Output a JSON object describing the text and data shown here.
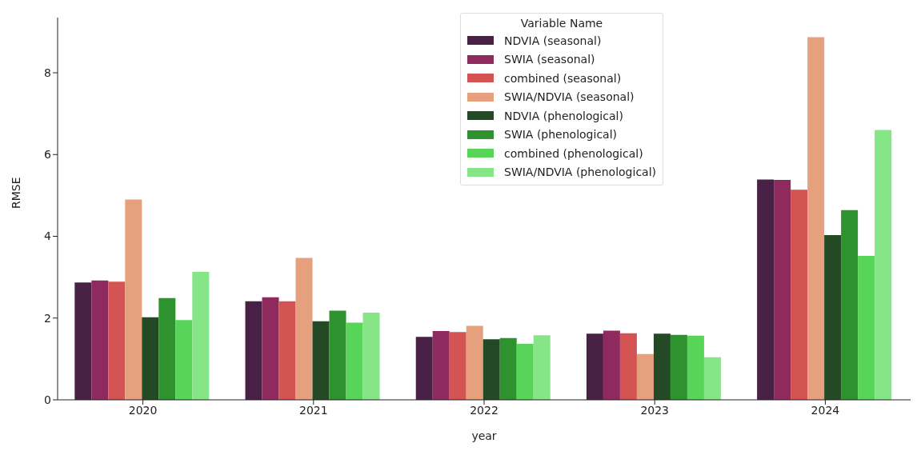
{
  "chart_data": {
    "type": "bar",
    "xlabel": "year",
    "ylabel": "RMSE",
    "legend_title": "Variable Name",
    "legend": "top",
    "grid": false,
    "categories": [
      "2020",
      "2021",
      "2022",
      "2023",
      "2024"
    ],
    "ylim": [
      0,
      9.35
    ],
    "yticks": [
      0,
      2,
      4,
      6,
      8
    ],
    "series": [
      {
        "name": "NDVIA (seasonal)",
        "color": "#4a2146",
        "values": [
          2.87,
          2.41,
          1.54,
          1.62,
          5.39
        ]
      },
      {
        "name": "SWIA (seasonal)",
        "color": "#8f2a5e",
        "values": [
          2.92,
          2.51,
          1.68,
          1.69,
          5.38
        ]
      },
      {
        "name": "combined (seasonal)",
        "color": "#d45454",
        "values": [
          2.89,
          2.41,
          1.66,
          1.63,
          5.14
        ]
      },
      {
        "name": "SWIA/NDVIA (seasonal)",
        "color": "#e6a07e",
        "values": [
          4.9,
          3.47,
          1.81,
          1.12,
          8.87
        ]
      },
      {
        "name": "NDVIA (phenological)",
        "color": "#234a24",
        "values": [
          2.02,
          1.92,
          1.48,
          1.62,
          4.03
        ]
      },
      {
        "name": "SWIA (phenological)",
        "color": "#2e922e",
        "values": [
          2.49,
          2.18,
          1.51,
          1.59,
          4.64
        ]
      },
      {
        "name": "combined (phenological)",
        "color": "#58d458",
        "values": [
          1.95,
          1.89,
          1.37,
          1.57,
          3.52
        ]
      },
      {
        "name": "SWIA/NDVIA (phenological)",
        "color": "#86e586",
        "values": [
          3.13,
          2.13,
          1.58,
          1.04,
          6.6
        ]
      }
    ]
  }
}
